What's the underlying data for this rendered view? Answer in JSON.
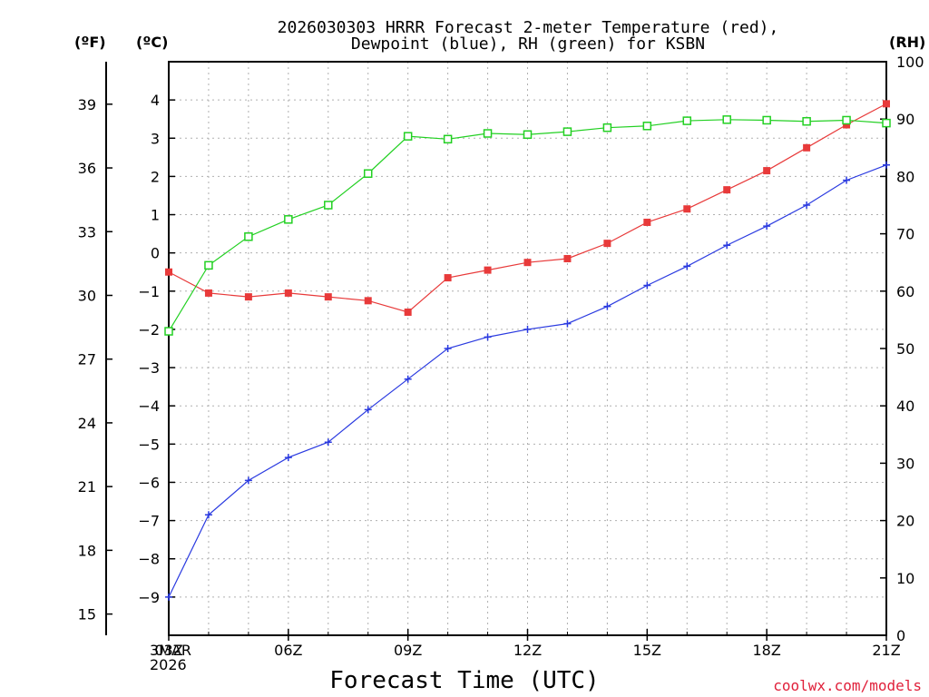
{
  "chart_data": {
    "type": "line",
    "title": [
      "2026030303 HRRR Forecast 2-meter Temperature (red),",
      "Dewpoint (blue), RH (green) for KSBN"
    ],
    "xlabel": "Forecast Time (UTC)",
    "credit": "coolwx.com/models",
    "x_hours": [
      0,
      1,
      2,
      3,
      4,
      5,
      6,
      7,
      8,
      9,
      10,
      11,
      12,
      13,
      14,
      15,
      16,
      17,
      18
    ],
    "x_ticks": [
      {
        "hour": 0,
        "label": "03Z"
      },
      {
        "hour": 3,
        "label": "06Z"
      },
      {
        "hour": 6,
        "label": "09Z"
      },
      {
        "hour": 9,
        "label": "12Z"
      },
      {
        "hour": 12,
        "label": "15Z"
      },
      {
        "hour": 15,
        "label": "18Z"
      },
      {
        "hour": 18,
        "label": "21Z"
      }
    ],
    "start_date": [
      "3MAR",
      "2026"
    ],
    "units": {
      "fahrenheit": "(ºF)",
      "celsius": "(ºC)",
      "rh": "(RH)"
    },
    "celsius_axis": {
      "ylim": [
        -10,
        5
      ],
      "ticks": [
        4,
        3,
        2,
        1,
        0,
        -1,
        -2,
        -3,
        -4,
        -5,
        -6,
        -7,
        -8,
        -9
      ]
    },
    "fahrenheit_axis": {
      "ticks": [
        39,
        36,
        33,
        30,
        27,
        24,
        21,
        18,
        15
      ]
    },
    "rh_axis": {
      "ylim": [
        0,
        100
      ],
      "ticks": [
        100,
        90,
        80,
        70,
        60,
        50,
        40,
        30,
        20,
        10,
        0
      ]
    },
    "series": [
      {
        "name": "Temperature",
        "axis": "celsius",
        "color": "#e83a3a",
        "marker": "filled-square",
        "values": [
          -0.5,
          -1.05,
          -1.15,
          -1.05,
          -1.15,
          -1.25,
          -1.55,
          -0.65,
          -0.45,
          -0.25,
          -0.15,
          0.25,
          0.8,
          1.15,
          1.65,
          2.15,
          2.75,
          3.35,
          3.9
        ]
      },
      {
        "name": "Dewpoint",
        "axis": "celsius",
        "color": "#2a3ae0",
        "marker": "plus",
        "values": [
          -9.0,
          -6.85,
          -5.95,
          -5.35,
          -4.95,
          -4.1,
          -3.3,
          -2.5,
          -2.2,
          -2.0,
          -1.85,
          -1.4,
          -0.85,
          -0.35,
          0.2,
          0.7,
          1.25,
          1.9,
          2.3
        ]
      },
      {
        "name": "RH",
        "axis": "rh",
        "color": "#22d022",
        "marker": "open-square",
        "values": [
          53,
          64.5,
          69.5,
          72.5,
          75,
          80.5,
          87,
          86.5,
          87.5,
          87.3,
          87.8,
          88.5,
          88.8,
          89.7,
          89.9,
          89.8,
          89.6,
          89.8,
          89.3
        ]
      }
    ],
    "grid": true
  }
}
